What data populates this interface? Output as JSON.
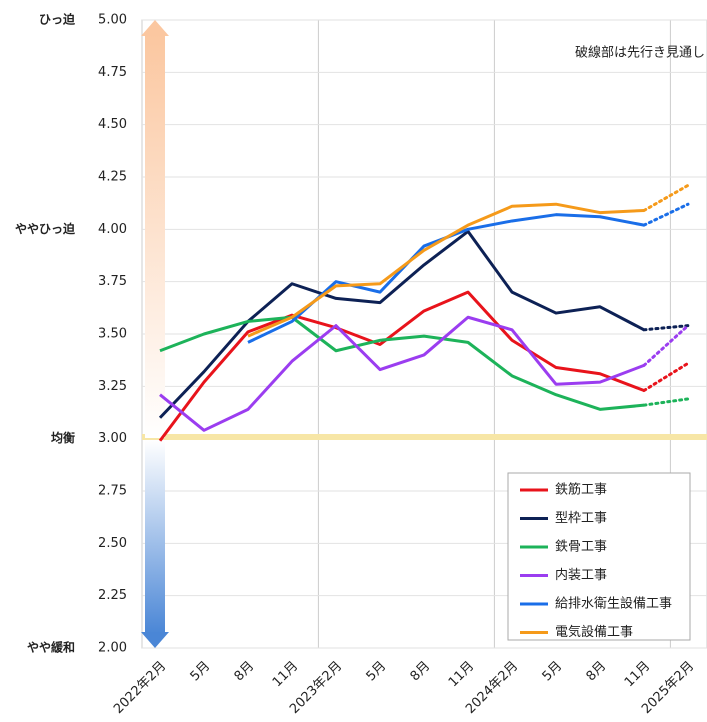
{
  "chart_data": {
    "type": "line",
    "annotation": "破線部は先行き見通し",
    "categories": [
      "2022年2月",
      "5月",
      "8月",
      "11月",
      "2023年2月",
      "5月",
      "8月",
      "11月",
      "2024年2月",
      "5月",
      "8月",
      "11月",
      "2025年2月"
    ],
    "series": [
      {
        "name": "鉄筋工事",
        "color": "#e8131b",
        "values": [
          2.99,
          3.27,
          3.51,
          3.59,
          3.53,
          3.45,
          3.61,
          3.7,
          3.47,
          3.34,
          3.31,
          3.23,
          3.36
        ]
      },
      {
        "name": "型枠工事",
        "color": "#0d2155",
        "values": [
          3.1,
          3.32,
          3.56,
          3.74,
          3.67,
          3.65,
          3.83,
          3.99,
          3.7,
          3.6,
          3.63,
          3.52,
          3.54
        ]
      },
      {
        "name": "鉄骨工事",
        "color": "#1db35a",
        "values": [
          3.42,
          3.5,
          3.56,
          3.58,
          3.42,
          3.47,
          3.49,
          3.46,
          3.3,
          3.21,
          3.14,
          3.16,
          3.19
        ]
      },
      {
        "name": "内装工事",
        "color": "#9b3df0",
        "values": [
          3.21,
          3.04,
          3.14,
          3.37,
          3.54,
          3.33,
          3.4,
          3.58,
          3.52,
          3.26,
          3.27,
          3.35,
          3.54
        ]
      },
      {
        "name": "給排水衛生設備工事",
        "color": "#1a6ee8",
        "values": [
          null,
          null,
          3.46,
          3.56,
          3.75,
          3.7,
          3.92,
          4.0,
          4.04,
          4.07,
          4.06,
          4.02,
          4.12
        ]
      },
      {
        "name": "電気設備工事",
        "color": "#f59a1a",
        "values": [
          null,
          null,
          3.49,
          3.58,
          3.73,
          3.74,
          3.9,
          4.02,
          4.11,
          4.12,
          4.08,
          4.09,
          4.21
        ]
      }
    ],
    "ylim": [
      2,
      5
    ],
    "yticks": [
      {
        "value": 2,
        "label": "2.00"
      },
      {
        "value": 2.25,
        "label": "2.25"
      },
      {
        "value": 2.5,
        "label": "2.50"
      },
      {
        "value": 2.75,
        "label": "2.75"
      },
      {
        "value": 3,
        "label": "3.00"
      },
      {
        "value": 3.25,
        "label": "3.25"
      },
      {
        "value": 3.5,
        "label": "3.50"
      },
      {
        "value": 3.75,
        "label": "3.75"
      },
      {
        "value": 4,
        "label": "4.00"
      },
      {
        "value": 4.25,
        "label": "4.25"
      },
      {
        "value": 4.5,
        "label": "4.50"
      },
      {
        "value": 4.75,
        "label": "4.75"
      },
      {
        "value": 5,
        "label": "5.00"
      }
    ],
    "level_labels": [
      {
        "value": 5,
        "label": "ひっ迫"
      },
      {
        "value": 4,
        "label": "ややひっ迫"
      },
      {
        "value": 3,
        "label": "均衡"
      },
      {
        "value": 2,
        "label": "やや緩和"
      }
    ],
    "grid": true
  }
}
